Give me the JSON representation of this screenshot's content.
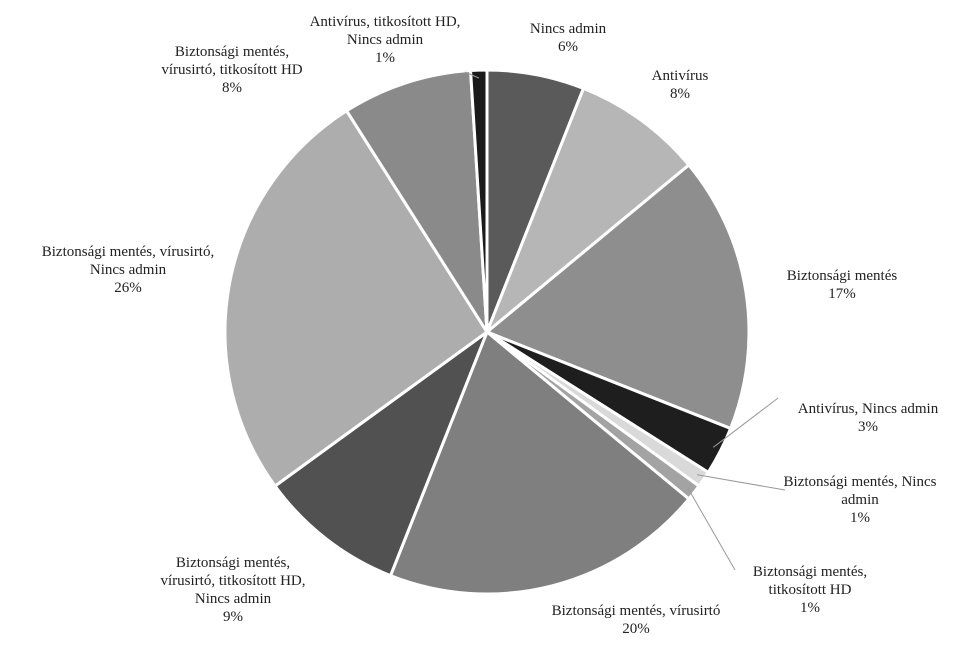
{
  "chart_data": {
    "type": "pie",
    "categories": [
      "Nincs admin",
      "Antivírus",
      "Biztonsági mentés",
      "Antivírus, Nincs admin",
      "Biztonsági mentés, Nincs admin",
      "Biztonsági mentés, titkosított HD",
      "Biztonsági mentés, vírusirtó",
      "Biztonsági mentés, vírusirtó, titkosított HD, Nincs admin",
      "Biztonsági mentés, vírusirtó, Nincs admin",
      "Biztonsági mentés, vírusirtó, titkosított HD",
      "Antivírus, titkosított HD, Nincs admin"
    ],
    "values": [
      6,
      8,
      17,
      3,
      1,
      1,
      20,
      9,
      26,
      8,
      1
    ],
    "value_labels": [
      "6%",
      "8%",
      "17%",
      "3%",
      "1%",
      "1%",
      "20%",
      "9%",
      "26%",
      "8%",
      "1%"
    ],
    "colors": [
      "#5a5a5a",
      "#b6b6b6",
      "#8e8e8e",
      "#1e1e1e",
      "#d9d9d9",
      "#a3a3a3",
      "#7f7f7f",
      "#515151",
      "#adadad",
      "#8a8a8a",
      "#1a1a1a"
    ]
  }
}
